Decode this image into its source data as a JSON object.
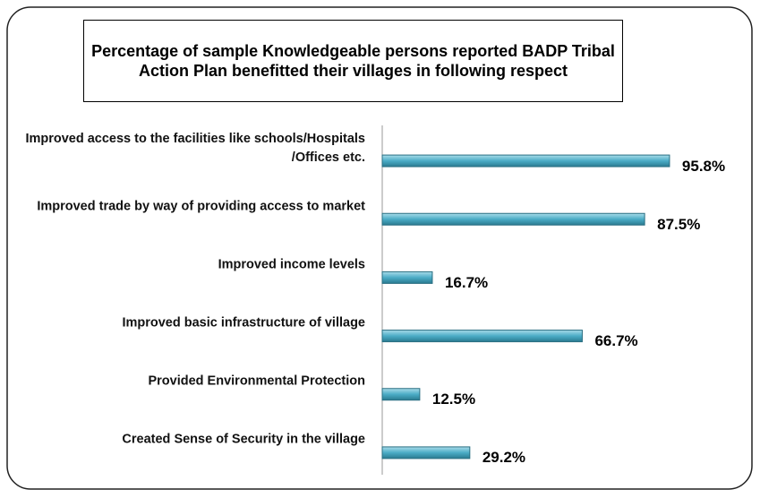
{
  "chart_data": {
    "type": "bar",
    "orientation": "horizontal",
    "title": "Percentage of sample Knowledgeable persons  reported BADP Tribal Action Plan benefitted their villages in following respect",
    "categories": [
      "Improved access to the facilities like schools/Hospitals /Offices etc.",
      "Improved trade by way of providing access to market",
      "Improved income levels",
      "Improved basic infrastructure of village",
      "Provided Environmental Protection",
      "Created Sense of Security in the village"
    ],
    "values": [
      95.8,
      87.5,
      16.7,
      66.7,
      12.5,
      29.2
    ],
    "value_labels": [
      "95.8%",
      "87.5%",
      "16.7%",
      "66.7%",
      "12.5%",
      "29.2%"
    ],
    "color": "#4bacc6",
    "xlim": [
      0,
      100
    ]
  }
}
